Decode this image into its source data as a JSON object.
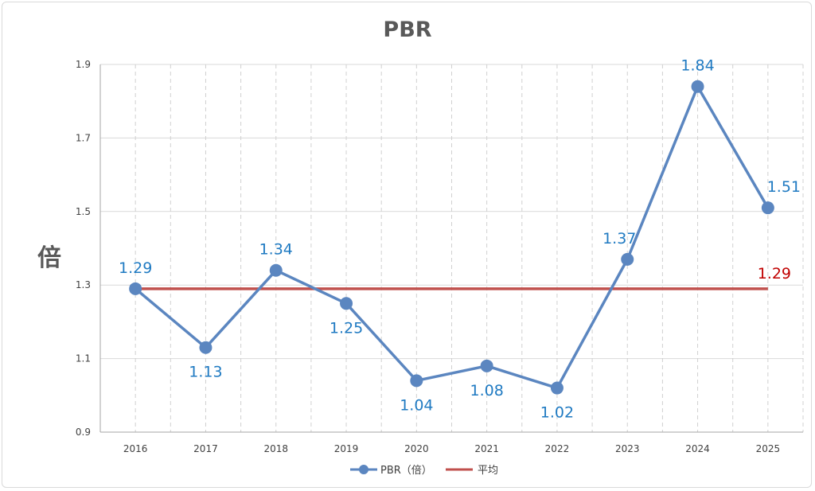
{
  "chart_data": {
    "type": "line",
    "title": "PBR",
    "ylabel": "倍",
    "xlabel": "",
    "categories": [
      "2016",
      "2017",
      "2018",
      "2019",
      "2020",
      "2021",
      "2022",
      "2023",
      "2024",
      "2025"
    ],
    "ylim": [
      0.9,
      1.9
    ],
    "yticks": [
      "0.9",
      "1.1",
      "1.3",
      "1.5",
      "1.7",
      "1.9"
    ],
    "grid": "vertical dashed",
    "legend_position": "bottom",
    "series": [
      {
        "name": "PBR（倍）",
        "color": "#5b86c0",
        "marker": "circle",
        "values": [
          1.29,
          1.13,
          1.34,
          1.25,
          1.04,
          1.08,
          1.02,
          1.37,
          1.84,
          1.51
        ],
        "labels": [
          "1.29",
          "1.13",
          "1.34",
          "1.25",
          "1.04",
          "1.08",
          "1.02",
          "1.37",
          "1.84",
          "1.51"
        ]
      },
      {
        "name": "平均",
        "color": "#c0504d",
        "values": [
          1.29,
          1.29,
          1.29,
          1.29,
          1.29,
          1.29,
          1.29,
          1.29,
          1.29,
          1.29
        ],
        "end_label": "1.29"
      }
    ],
    "label_color": "#1f7ac2",
    "avg_label_color": "#c00000"
  }
}
